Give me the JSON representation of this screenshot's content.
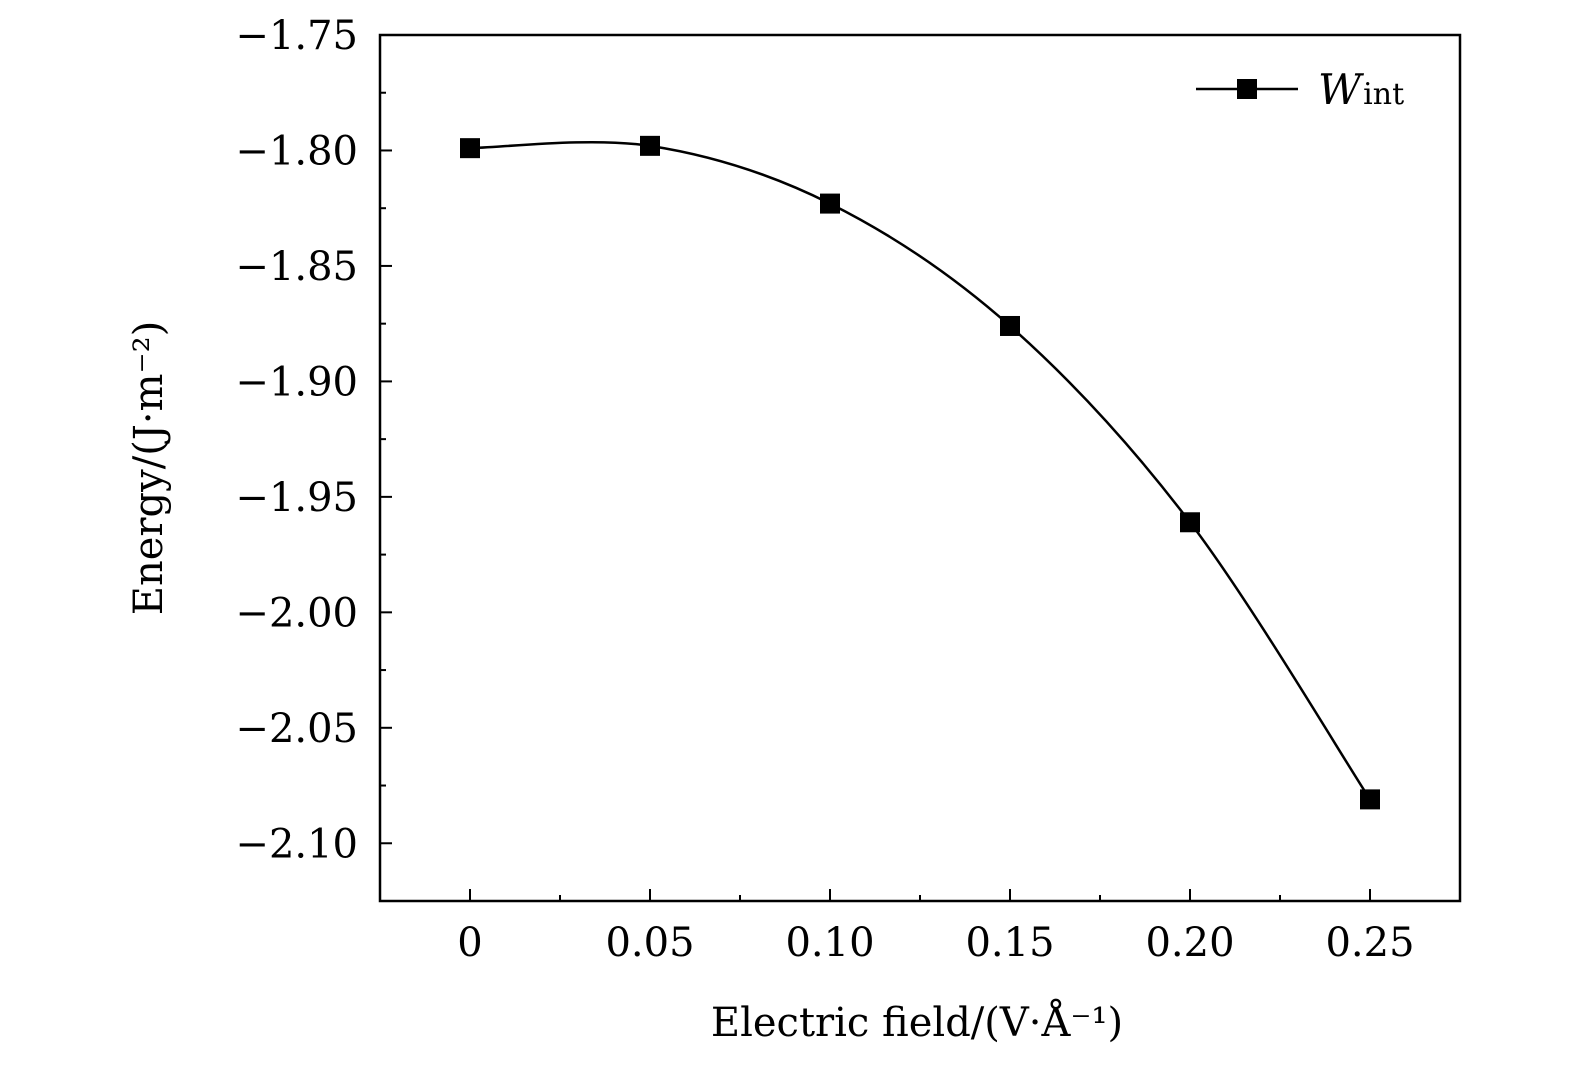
{
  "chart_data": {
    "type": "line",
    "xlabel": "Electric field/(V·Å⁻¹)",
    "ylabel": "Energy/(J·m⁻²)",
    "xlim": [
      -0.025,
      0.275
    ],
    "ylim": [
      -2.125,
      -1.75
    ],
    "x_ticks": [
      0,
      0.05,
      0.1,
      0.15,
      0.2,
      0.25
    ],
    "x_tick_labels": [
      "0",
      "0.05",
      "0.10",
      "0.15",
      "0.20",
      "0.25"
    ],
    "y_ticks": [
      -1.75,
      -1.8,
      -1.85,
      -1.9,
      -1.95,
      -2.0,
      -2.05,
      -2.1
    ],
    "y_tick_labels": [
      "−1.75",
      "−1.80",
      "−1.85",
      "−1.90",
      "−1.95",
      "−2.00",
      "−2.05",
      "−2.10"
    ],
    "grid": false,
    "legend_position": "top-right",
    "series": [
      {
        "name": "W",
        "name_subscript": "int",
        "marker": "square",
        "line": "smooth",
        "color": "#000000",
        "x": [
          0,
          0.05,
          0.1,
          0.15,
          0.2,
          0.25
        ],
        "values": [
          -1.799,
          -1.798,
          -1.823,
          -1.876,
          -1.961,
          -2.081
        ]
      }
    ]
  }
}
